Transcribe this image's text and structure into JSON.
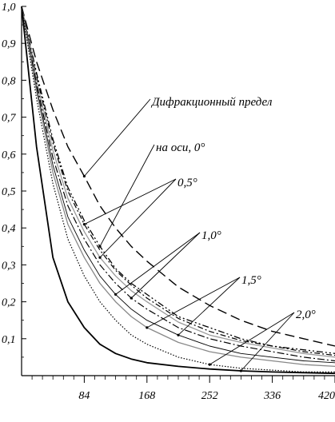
{
  "chart_data": {
    "type": "line",
    "title": "",
    "xlabel": "",
    "ylabel": "",
    "xlim": [
      0,
      420
    ],
    "ylim": [
      0,
      1.0
    ],
    "grid": false,
    "x_ticks": [
      84,
      168,
      252,
      336,
      420
    ],
    "x_tick_labels": [
      "84",
      "168",
      "252",
      "336",
      "420"
    ],
    "y_ticks": [
      0.1,
      0.2,
      0.3,
      0.4,
      0.5,
      0.6,
      0.7,
      0.8,
      0.9,
      1.0
    ],
    "y_tick_labels": [
      "0,1",
      "0,2",
      "0,3",
      "0,4",
      "0,5",
      "0,6",
      "0,7",
      "0,8",
      "0,9",
      "1,0"
    ],
    "annotations": [
      {
        "text": "Дифракционный предел"
      },
      {
        "text": "на оси, 0°"
      },
      {
        "text": "0,5°"
      },
      {
        "text": "1,0°"
      },
      {
        "text": "1,5°"
      },
      {
        "text": "2,0°"
      }
    ],
    "series": [
      {
        "x": [
          0,
          20,
          42,
          62,
          84,
          105,
          126,
          147,
          168,
          210,
          252,
          294,
          336,
          378,
          420
        ],
        "values": [
          1.0,
          0.85,
          0.72,
          0.62,
          0.54,
          0.46,
          0.4,
          0.35,
          0.31,
          0.24,
          0.19,
          0.15,
          0.12,
          0.1,
          0.08
        ]
      },
      {
        "x": [
          0,
          20,
          42,
          62,
          84,
          105,
          126,
          147,
          168,
          210,
          252,
          294,
          336,
          378,
          420
        ],
        "values": [
          1.0,
          0.82,
          0.64,
          0.51,
          0.42,
          0.35,
          0.29,
          0.25,
          0.22,
          0.16,
          0.13,
          0.1,
          0.08,
          0.07,
          0.06
        ]
      },
      {
        "x": [
          0,
          20,
          42,
          62,
          84,
          105,
          126,
          147,
          168,
          210,
          252,
          294,
          336,
          378,
          420
        ],
        "values": [
          1.0,
          0.81,
          0.63,
          0.5,
          0.41,
          0.34,
          0.285,
          0.245,
          0.21,
          0.155,
          0.12,
          0.095,
          0.08,
          0.065,
          0.055
        ]
      },
      {
        "x": [
          0,
          20,
          42,
          62,
          84,
          105,
          126,
          147,
          168,
          210,
          252,
          294,
          336,
          378,
          420
        ],
        "values": [
          1.0,
          0.8,
          0.61,
          0.48,
          0.39,
          0.32,
          0.27,
          0.23,
          0.2,
          0.145,
          0.11,
          0.09,
          0.075,
          0.06,
          0.05
        ]
      },
      {
        "x": [
          0,
          20,
          42,
          62,
          84,
          105,
          126,
          147,
          168,
          210,
          252,
          294,
          336,
          378,
          420
        ],
        "values": [
          1.0,
          0.79,
          0.59,
          0.46,
          0.37,
          0.3,
          0.25,
          0.21,
          0.18,
          0.13,
          0.1,
          0.08,
          0.065,
          0.05,
          0.04
        ]
      },
      {
        "x": [
          0,
          20,
          42,
          62,
          84,
          105,
          126,
          147,
          168,
          210,
          252,
          294,
          336,
          378,
          420
        ],
        "values": [
          1.0,
          0.78,
          0.57,
          0.43,
          0.34,
          0.27,
          0.22,
          0.18,
          0.15,
          0.11,
          0.08,
          0.06,
          0.05,
          0.04,
          0.035
        ]
      },
      {
        "x": [
          0,
          20,
          42,
          62,
          84,
          105,
          126,
          147,
          168,
          210,
          252,
          294,
          336,
          378,
          420
        ],
        "values": [
          1.0,
          0.77,
          0.55,
          0.41,
          0.32,
          0.25,
          0.2,
          0.16,
          0.13,
          0.09,
          0.065,
          0.05,
          0.04,
          0.03,
          0.025
        ]
      },
      {
        "x": [
          0,
          20,
          42,
          62,
          84,
          105,
          126,
          147,
          168,
          210,
          252,
          294,
          336,
          378,
          420
        ],
        "values": [
          1.0,
          0.75,
          0.52,
          0.37,
          0.27,
          0.2,
          0.15,
          0.11,
          0.085,
          0.05,
          0.03,
          0.02,
          0.015,
          0.01,
          0.01
        ]
      },
      {
        "x": [
          0,
          20,
          42,
          62,
          84,
          105,
          126,
          147,
          168,
          210,
          252,
          294,
          336,
          378,
          420
        ],
        "values": [
          1.0,
          0.62,
          0.32,
          0.2,
          0.13,
          0.085,
          0.06,
          0.045,
          0.035,
          0.025,
          0.018,
          0.013,
          0.01,
          0.008,
          0.006
        ]
      }
    ]
  }
}
